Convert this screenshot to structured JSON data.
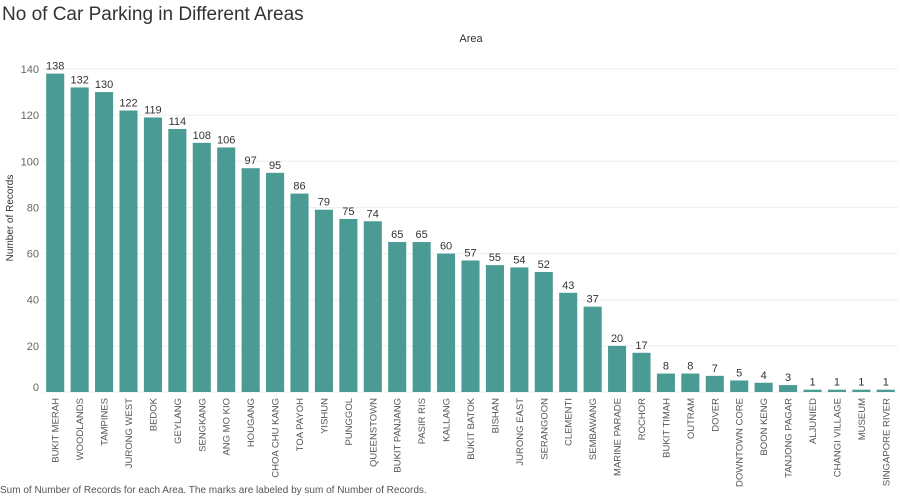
{
  "chart_data": {
    "type": "bar",
    "title": "No of Car Parking in Different Areas",
    "column_header": "Area",
    "ylabel": "Number of Records",
    "caption": "Sum of Number of Records for each Area.  The marks are labeled by sum of Number of Records.",
    "ylim": [
      0,
      140
    ],
    "yticks": [
      0,
      20,
      40,
      60,
      80,
      100,
      120,
      140
    ],
    "bar_color": "#4a9b94",
    "grid": "horizontal",
    "categories": [
      "BUKIT MERAH",
      "WOODLANDS",
      "TAMPINES",
      "JURONG WEST",
      "BEDOK",
      "GEYLANG",
      "SENGKANG",
      "ANG MO KIO",
      "HOUGANG",
      "CHOA CHU KANG",
      "TOA PAYOH",
      "YISHUN",
      "PUNGGOL",
      "QUEENSTOWN",
      "BUKIT PANJANG",
      "PASIR RIS",
      "KALLANG",
      "BUKIT BATOK",
      "BISHAN",
      "JURONG EAST",
      "SERANGOON",
      "CLEMENTI",
      "SEMBAWANG",
      "MARINE PARADE",
      "ROCHOR",
      "BUKIT TIMAH",
      "OUTRAM",
      "DOVER",
      "DOWNTOWN CORE",
      "BOON KENG",
      "TANJONG PAGAR",
      "ALJUNIED",
      "CHANGI VILLAGE",
      "MUSEUM",
      "SINGAPORE RIVER"
    ],
    "values": [
      138,
      132,
      130,
      122,
      119,
      114,
      108,
      106,
      97,
      95,
      86,
      79,
      75,
      74,
      65,
      65,
      60,
      57,
      55,
      54,
      52,
      43,
      37,
      20,
      17,
      8,
      8,
      7,
      5,
      4,
      3,
      1,
      1,
      1,
      1
    ]
  }
}
